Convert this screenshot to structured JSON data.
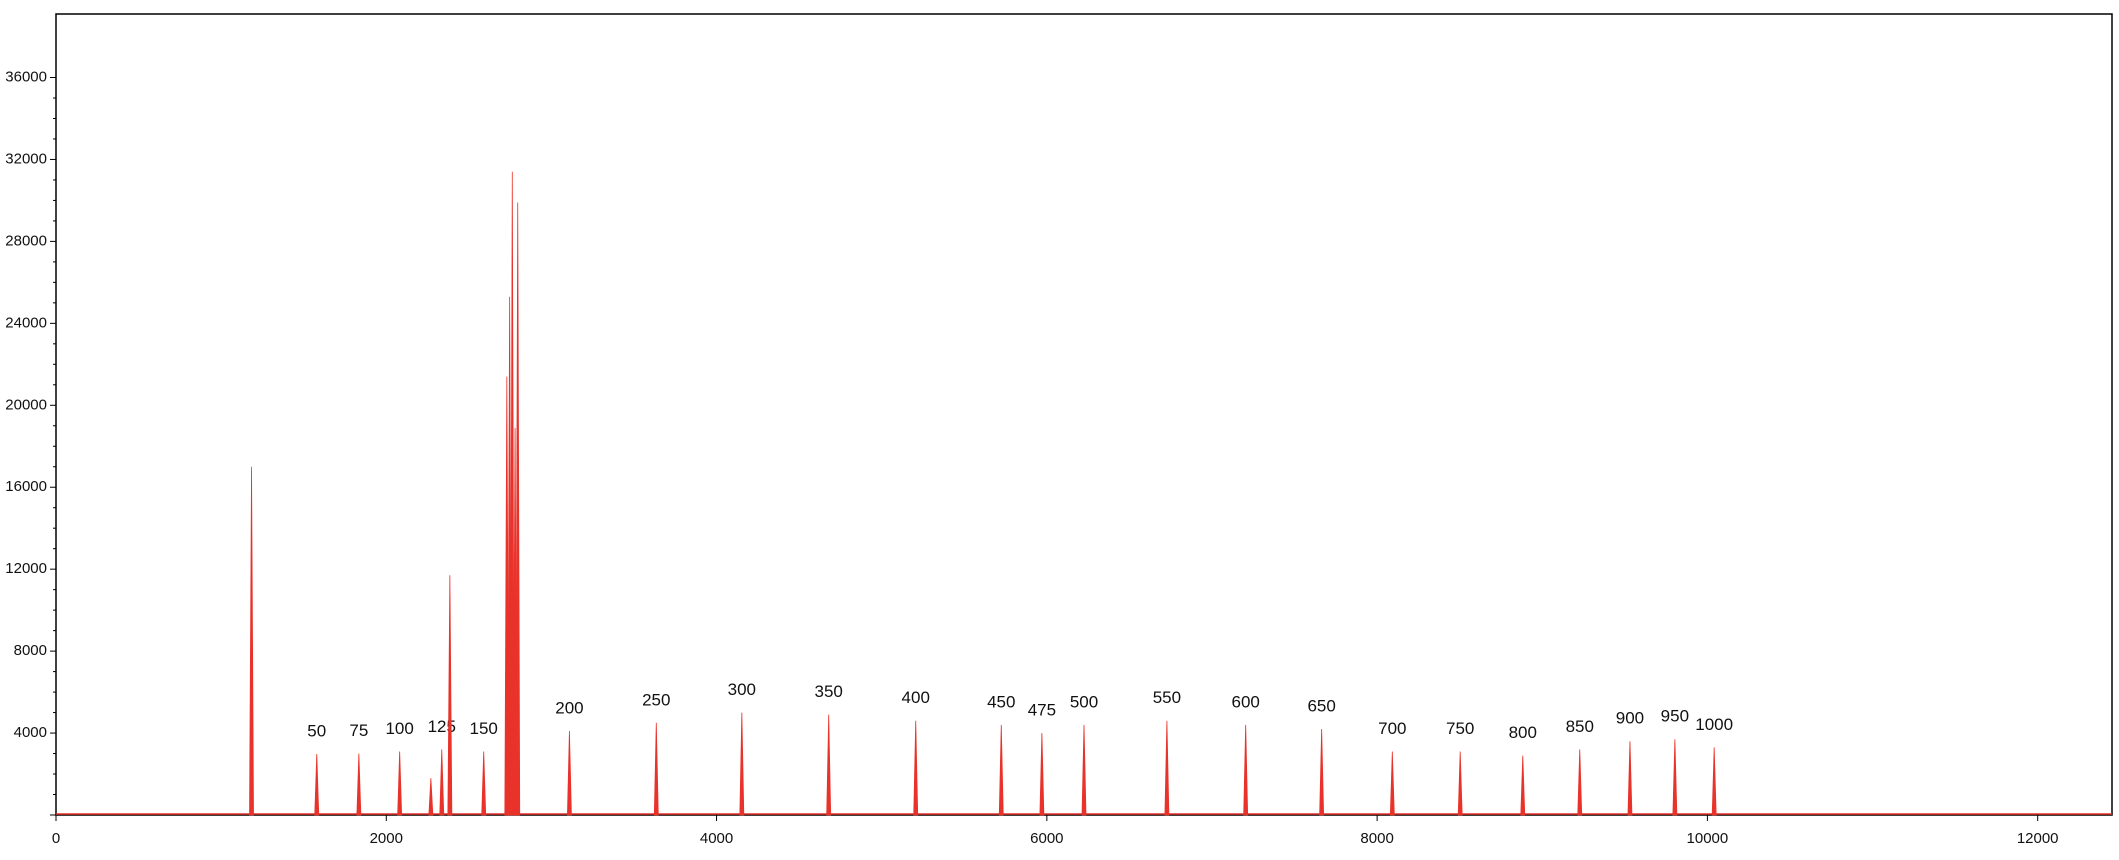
{
  "chart_data": {
    "type": "spike",
    "x": [
      1184,
      1579,
      1834,
      2081,
      2270,
      2336,
      2385,
      2590,
      2730,
      2747,
      2763,
      2780,
      2796,
      3109,
      3635,
      4153,
      4679,
      5206,
      5724,
      5970,
      6225,
      6727,
      7204,
      7664,
      8092,
      8503,
      8882,
      9227,
      9531,
      9803,
      10041
    ],
    "values": [
      17000,
      2980,
      3000,
      3100,
      1800,
      3200,
      11700,
      3100,
      21400,
      25300,
      31400,
      18900,
      29900,
      4100,
      4500,
      5000,
      4900,
      4600,
      4400,
      4000,
      4400,
      4600,
      4400,
      4200,
      3100,
      3100,
      2900,
      3200,
      3600,
      3700,
      3300
    ],
    "peak_labels": [
      null,
      "50",
      "75",
      "100",
      null,
      "125",
      null,
      "150",
      null,
      null,
      null,
      null,
      null,
      "200",
      "250",
      "300",
      "350",
      "400",
      "450",
      "475",
      "500",
      "550",
      "600",
      "650",
      "700",
      "750",
      "800",
      "850",
      "900",
      "950",
      "1000"
    ],
    "color": "#e8322a",
    "xlim": [
      0,
      12450
    ],
    "xticks": [
      0,
      2000,
      4000,
      6000,
      8000,
      10000,
      12000
    ],
    "ylim": [
      0,
      39100
    ],
    "yticks": [
      0,
      4000,
      8000,
      12000,
      16000,
      20000,
      24000,
      28000,
      32000,
      36000
    ]
  }
}
